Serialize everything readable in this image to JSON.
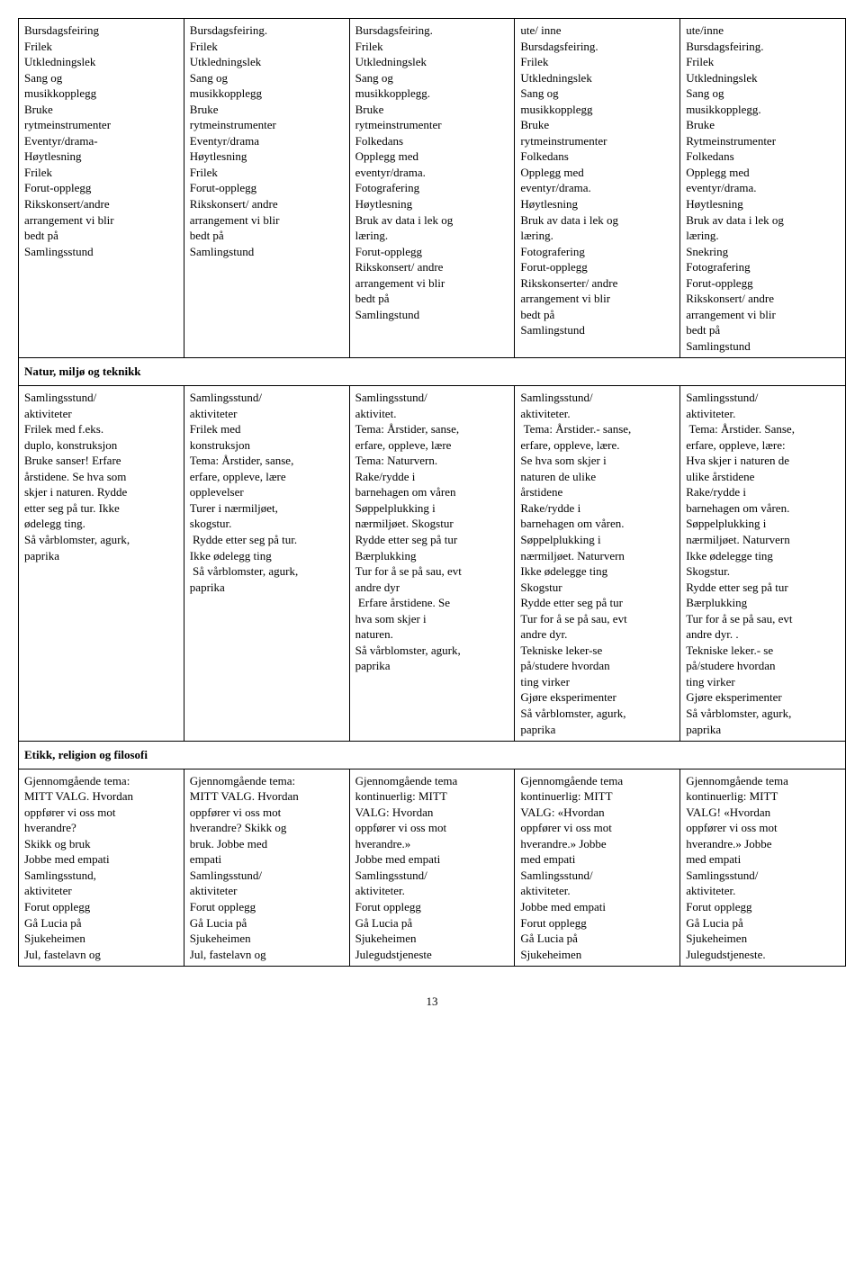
{
  "table": {
    "column_widths": [
      "20%",
      "20%",
      "20%",
      "20%",
      "20%"
    ],
    "rows": [
      {
        "type": "data",
        "cells": [
          "Bursdagsfeiring\nFrilek\nUtkledningslek\nSang og\nmusikkopplegg\nBruke\nrytmeinstrumenter\nEventyr/drama-\nHøytlesning\nFrilek\nForut-opplegg\nRikskonsert/andre\narrangement vi blir\nbedt på\nSamlingsstund",
          "Bursdagsfeiring.\nFrilek\nUtkledningslek\nSang og\nmusikkopplegg\nBruke\nrytmeinstrumenter\nEventyr/drama\nHøytlesning\nFrilek\nForut-opplegg\nRikskonsert/ andre\narrangement vi blir\nbedt på\nSamlingstund",
          "Bursdagsfeiring.\nFrilek\nUtkledningslek\nSang og\nmusikkopplegg.\nBruke\nrytmeinstrumenter\nFolkedans\nOpplegg med\neventyr/drama.\nFotografering\nHøytlesning\nBruk av data i lek og\nlæring.\nForut-opplegg\nRikskonsert/ andre\narrangement vi blir\nbedt på\nSamlingstund",
          "ute/ inne\nBursdagsfeiring.\nFrilek\nUtkledningslek\nSang og\nmusikkopplegg\nBruke\nrytmeinstrumenter\nFolkedans\nOpplegg med\neventyr/drama.\nHøytlesning\nBruk av data i lek og\nlæring.\nFotografering\nForut-opplegg\nRikskonserter/ andre\narrangement vi blir\nbedt på\nSamlingstund",
          "ute/inne\nBursdagsfeiring.\nFrilek\nUtkledningslek\nSang og\nmusikkopplegg.\nBruke\nRytmeinstrumenter\nFolkedans\nOpplegg med\neventyr/drama.\nHøytlesning\nBruk av data i lek og\nlæring.\nSnekring\nFotografering\nForut-opplegg\nRikskonsert/ andre\narrangement vi blir\nbedt på\nSamlingstund"
        ]
      },
      {
        "type": "header",
        "text": "Natur, miljø og teknikk"
      },
      {
        "type": "data",
        "cells": [
          "Samlingsstund/\naktiviteter\nFrilek med f.eks.\nduplo, konstruksjon\nBruke sanser! Erfare\nårstidene. Se hva som\nskjer i naturen. Rydde\netter seg på tur. Ikke\nødelegg ting.\nSå vårblomster, agurk,\npaprika",
          "Samlingsstund/\naktiviteter\nFrilek med\nkonstruksjon\nTema: Årstider, sanse,\nerfare, oppleve, lære\nopplevelser\nTurer i nærmiljøet,\nskogstur.\n Rydde etter seg på tur.\nIkke ødelegg ting\n Så vårblomster, agurk,\npaprika",
          "Samlingsstund/\naktivitet.\nTema: Årstider, sanse,\nerfare, oppleve, lære\nTema: Naturvern.\nRake/rydde i\nbarnehagen om våren\nSøppelplukking i\nnærmiljøet. Skogstur\nRydde etter seg på tur\nBærplukking\nTur for å se på sau, evt\nandre dyr\n Erfare årstidene. Se\nhva som skjer i\nnaturen.\nSå vårblomster, agurk,\npaprika",
          "Samlingsstund/\naktiviteter.\n Tema: Årstider.- sanse,\nerfare, oppleve, lære.\nSe hva som skjer i\nnaturen de ulike\nårstidene\nRake/rydde i\nbarnehagen om våren.\nSøppelplukking i\nnærmiljøet. Naturvern\nIkke ødelegge ting\nSkogstur\nRydde etter seg på tur\nTur for å se på sau, evt\nandre dyr.\nTekniske leker-se\npå/studere hvordan\nting virker\nGjøre eksperimenter\nSå vårblomster, agurk,\npaprika",
          "Samlingsstund/\naktiviteter.\n Tema: Årstider. Sanse,\nerfare, oppleve, lære:\nHva skjer i naturen de\nulike årstidene\nRake/rydde i\nbarnehagen om våren.\nSøppelplukking i\nnærmiljøet. Naturvern\nIkke ødelegge ting\nSkogstur.\nRydde etter seg på tur\nBærplukking\nTur for å se på sau, evt\nandre dyr. .\nTekniske leker.- se\npå/studere hvordan\nting virker\nGjøre eksperimenter\nSå vårblomster, agurk,\npaprika"
        ]
      },
      {
        "type": "header",
        "text": "Etikk, religion og filosofi"
      },
      {
        "type": "data",
        "cells": [
          "Gjennomgående tema:\nMITT VALG. Hvordan\noppfører vi oss mot\nhverandre?\nSkikk og bruk\nJobbe med empati\nSamlingsstund,\naktiviteter\nForut opplegg\nGå Lucia på\nSjukeheimen\nJul, fastelavn og",
          "Gjennomgående tema:\nMITT VALG. Hvordan\noppfører vi oss mot\nhverandre? Skikk og\nbruk. Jobbe med\nempati\nSamlingsstund/\naktiviteter\nForut opplegg\nGå Lucia på\nSjukeheimen\nJul, fastelavn og",
          "Gjennomgående tema\nkontinuerlig: MITT\nVALG: Hvordan\noppfører vi oss mot\nhverandre.»\nJobbe med empati\nSamlingsstund/\naktiviteter.\nForut opplegg\nGå Lucia på\nSjukeheimen\nJulegudstjeneste",
          "Gjennomgående tema\nkontinuerlig: MITT\nVALG: «Hvordan\noppfører vi oss mot\nhverandre.» Jobbe\nmed empati\nSamlingsstund/\naktiviteter.\nJobbe med empati\nForut opplegg\nGå Lucia på\nSjukeheimen",
          "Gjennomgående tema\nkontinuerlig: MITT\nVALG! «Hvordan\noppfører vi oss mot\nhverandre.» Jobbe\nmed empati\nSamlingsstund/\naktiviteter.\nForut opplegg\nGå Lucia på\nSjukeheimen\nJulegudstjeneste."
        ]
      }
    ]
  },
  "page_number": "13"
}
